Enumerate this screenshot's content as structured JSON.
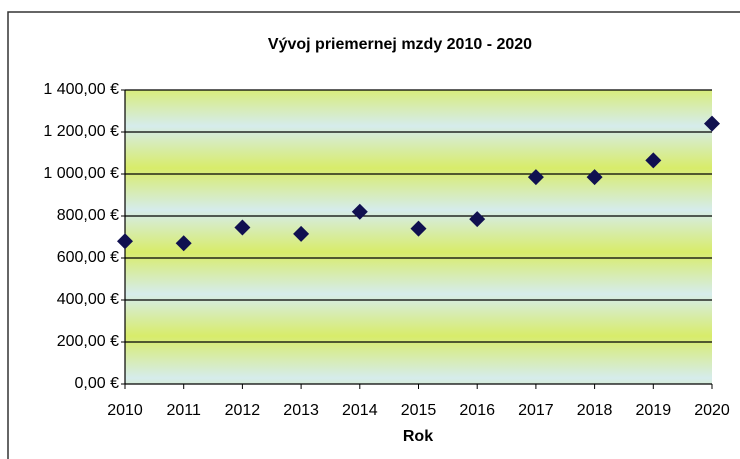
{
  "chart_data": {
    "type": "scatter",
    "title": "Vývoj priemernej mzdy 2010 - 2020",
    "x_label": "Rok",
    "x": [
      2010,
      2011,
      2012,
      2013,
      2014,
      2015,
      2016,
      2017,
      2018,
      2019,
      2020
    ],
    "values": [
      680,
      670,
      745,
      715,
      820,
      740,
      785,
      985,
      985,
      1065,
      1240
    ],
    "color": "#101050",
    "xlim": [
      2010,
      2020
    ],
    "xticks": [
      2010,
      2011,
      2012,
      2013,
      2014,
      2015,
      2016,
      2017,
      2018,
      2019,
      2020
    ],
    "ylim": [
      0,
      1400
    ],
    "yticks": [
      {
        "value": 0,
        "label": "0,00 €"
      },
      {
        "value": 200,
        "label": "200,00 €"
      },
      {
        "value": 400,
        "label": "400,00 €"
      },
      {
        "value": 600,
        "label": "600,00 €"
      },
      {
        "value": 800,
        "label": "800,00 €"
      },
      {
        "value": 1000,
        "label": "1 000,00 €"
      },
      {
        "value": 1200,
        "label": "1 200,00 €"
      },
      {
        "value": 1400,
        "label": "1 400,00 €"
      }
    ],
    "grid": true
  }
}
